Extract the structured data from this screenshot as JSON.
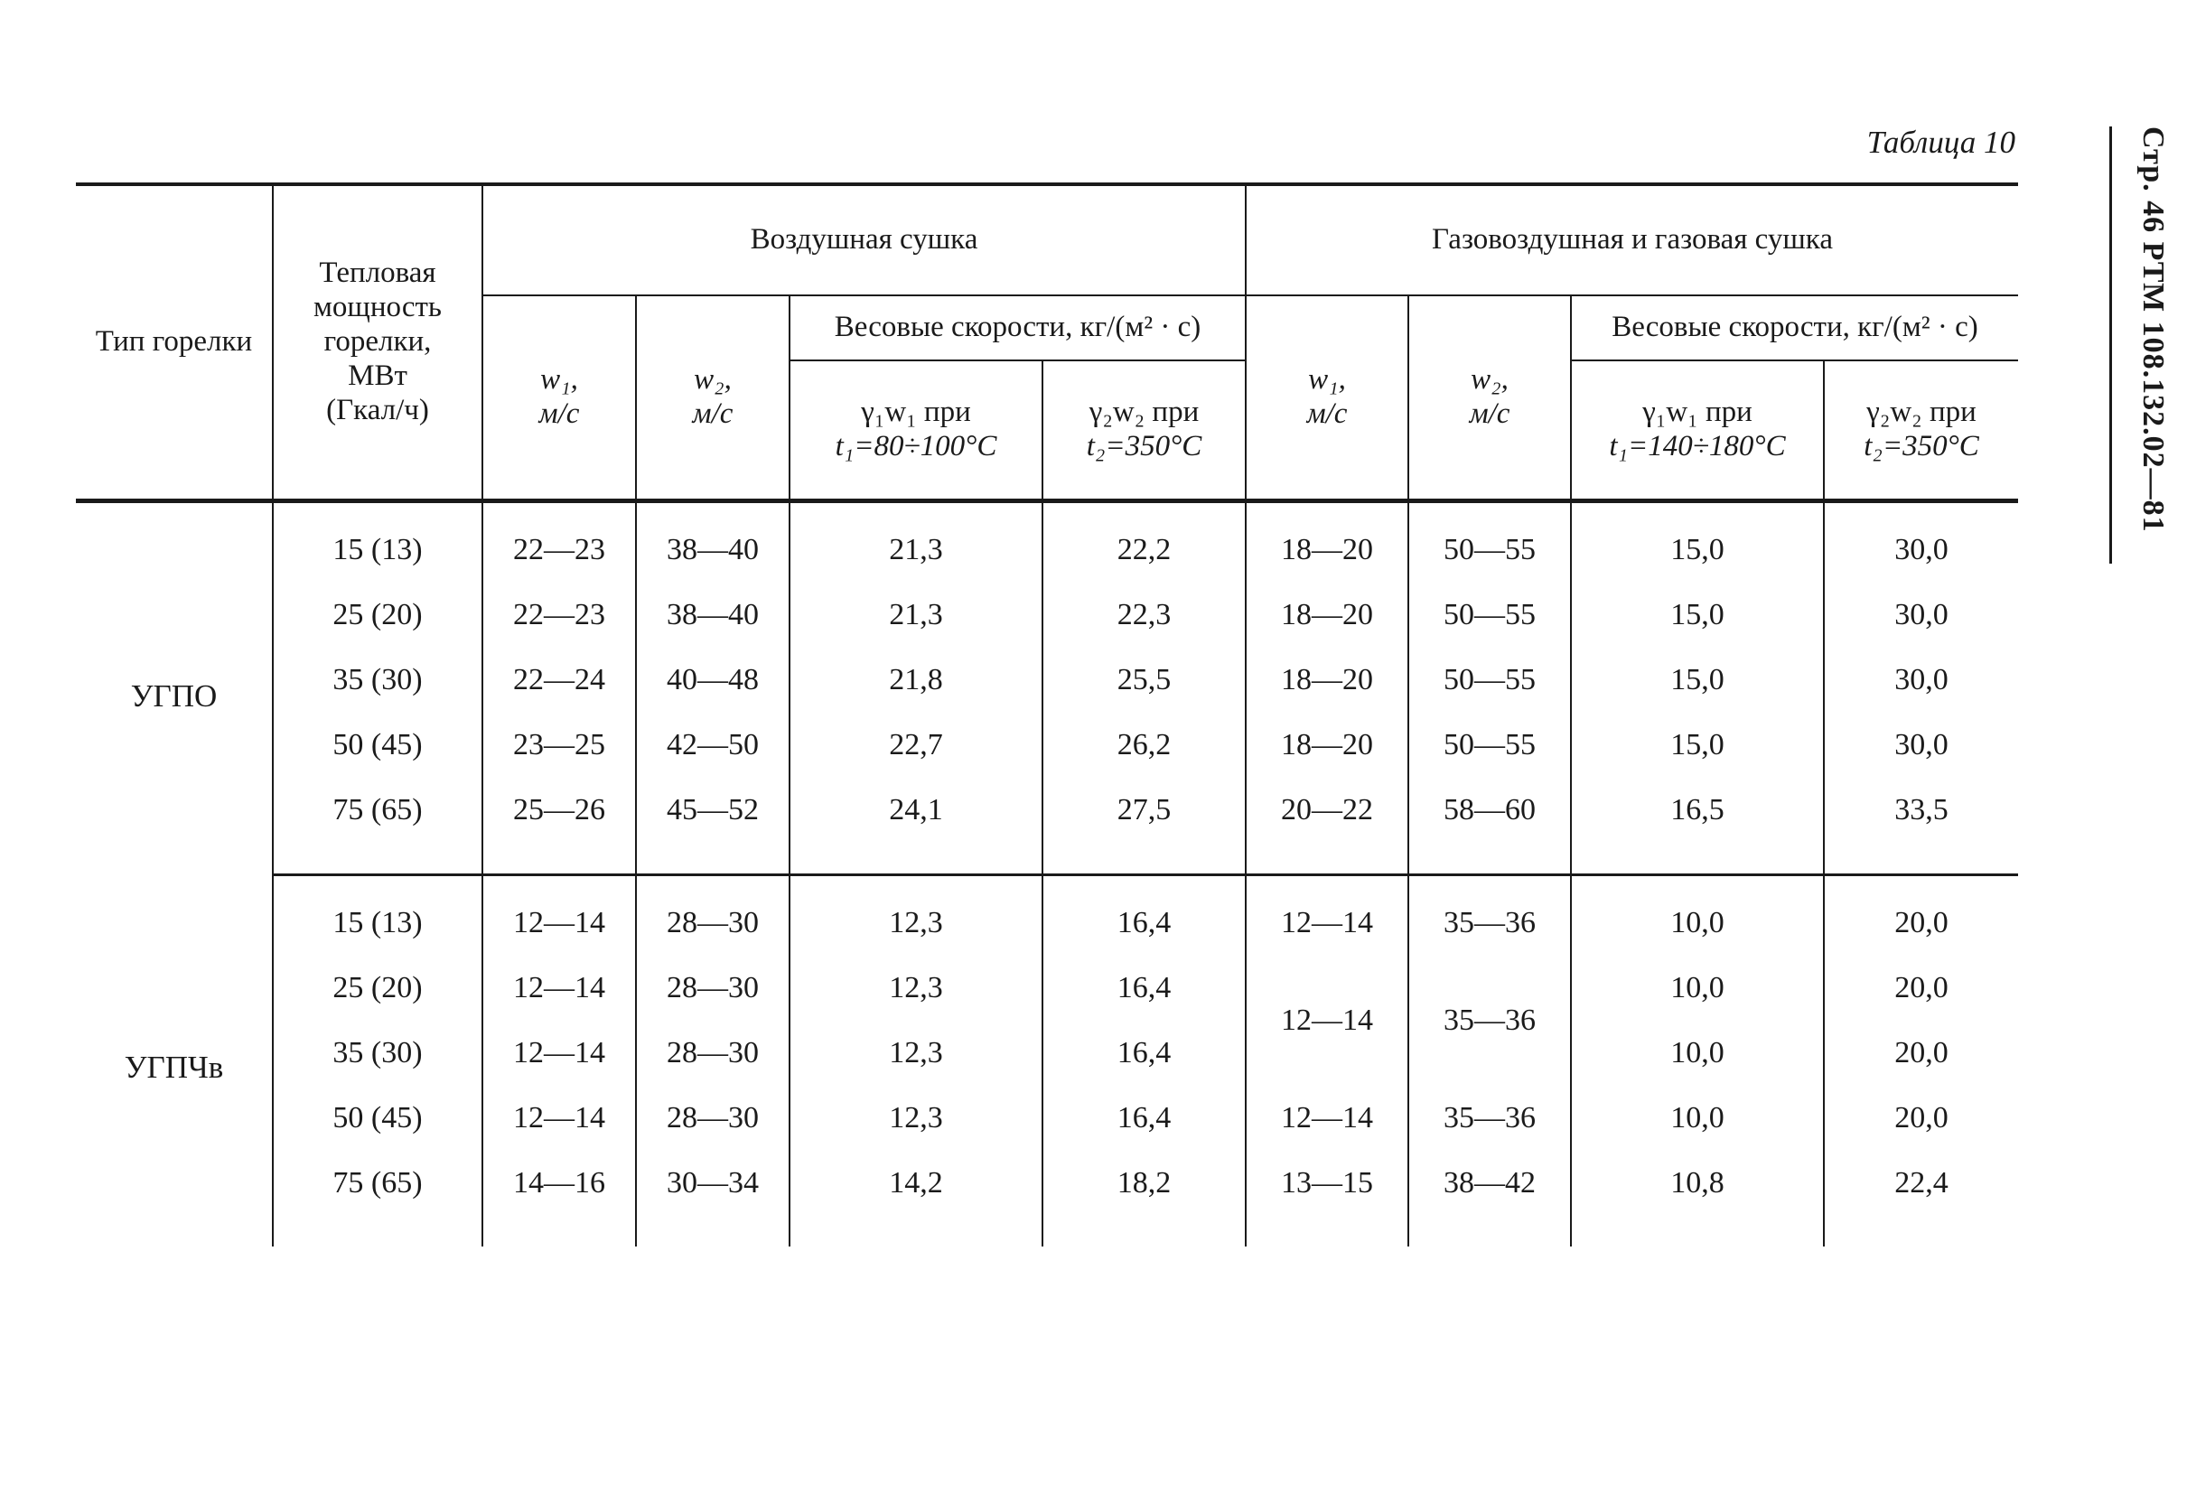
{
  "caption": "Таблица 10",
  "side_reference": "Стр. 46 РТМ 108.132.02—81",
  "headers": {
    "burner_type": "Тип горелки",
    "thermal_power_1": "Тепловая",
    "thermal_power_2": "мощность",
    "thermal_power_3": "горелки,",
    "thermal_power_4": "МВт",
    "thermal_power_5": "(Гкал/ч)",
    "air_drying": "Воздушная сушка",
    "gas_air_drying": "Газовоздушная и газовая сушка",
    "weight_speeds": "Весовые скорости, кг/(м² · с)",
    "unit": "м/с",
    "w1": "w₁,",
    "w2": "w₂,",
    "gw1_label": "γ₁w₁ при",
    "gw2_label": "γ₂w₂ при",
    "air_t1": "t₁=80÷100°C",
    "air_t2": "t₂=350°C",
    "gas_t1": "t₁=140÷180°C",
    "gas_t2": "t₂=350°C"
  },
  "groups": [
    {
      "type": "УГПО",
      "rows": [
        {
          "power": "15 (13)",
          "a_w1": "22—23",
          "a_w2": "38—40",
          "a_g1": "21,3",
          "a_g2": "22,2",
          "g_w1": "18—20",
          "g_w2": "50—55",
          "g_g1": "15,0",
          "g_g2": "30,0"
        },
        {
          "power": "25 (20)",
          "a_w1": "22—23",
          "a_w2": "38—40",
          "a_g1": "21,3",
          "a_g2": "22,3",
          "g_w1": "18—20",
          "g_w2": "50—55",
          "g_g1": "15,0",
          "g_g2": "30,0"
        },
        {
          "power": "35 (30)",
          "a_w1": "22—24",
          "a_w2": "40—48",
          "a_g1": "21,8",
          "a_g2": "25,5",
          "g_w1": "18—20",
          "g_w2": "50—55",
          "g_g1": "15,0",
          "g_g2": "30,0"
        },
        {
          "power": "50 (45)",
          "a_w1": "23—25",
          "a_w2": "42—50",
          "a_g1": "22,7",
          "a_g2": "26,2",
          "g_w1": "18—20",
          "g_w2": "50—55",
          "g_g1": "15,0",
          "g_g2": "30,0"
        },
        {
          "power": "75 (65)",
          "a_w1": "25—26",
          "a_w2": "45—52",
          "a_g1": "24,1",
          "a_g2": "27,5",
          "g_w1": "20—22",
          "g_w2": "58—60",
          "g_g1": "16,5",
          "g_g2": "33,5"
        }
      ]
    },
    {
      "type": "УГПЧв",
      "rows": [
        {
          "power": "15 (13)",
          "a_w1": "12—14",
          "a_w2": "28—30",
          "a_g1": "12,3",
          "a_g2": "16,4",
          "g_w1": "12—14",
          "g_w2": "35—36",
          "g_g1": "10,0",
          "g_g2": "20,0"
        },
        {
          "power": "25 (20)",
          "a_w1": "12—14",
          "a_w2": "28—30",
          "a_g1": "12,3",
          "a_g2": "16,4",
          "g_w1": "12—14",
          "g_w2": "35—36",
          "g_g1": "10,0",
          "g_g2": "20,0"
        },
        {
          "power": "35 (30)",
          "a_w1": "12—14",
          "a_w2": "28—30",
          "a_g1": "12,3",
          "a_g2": "16,4",
          "g_g1": "10,0",
          "g_g2": "20,0"
        },
        {
          "power": "50 (45)",
          "a_w1": "12—14",
          "a_w2": "28—30",
          "a_g1": "12,3",
          "a_g2": "16,4",
          "g_w1": "12—14",
          "g_w2": "35—36",
          "g_g1": "10,0",
          "g_g2": "20,0"
        },
        {
          "power": "75 (65)",
          "a_w1": "14—16",
          "a_w2": "30—34",
          "a_g1": "14,2",
          "a_g2": "18,2",
          "g_w1": "13—15",
          "g_w2": "38—42",
          "g_g1": "10,8",
          "g_g2": "22,4"
        }
      ]
    }
  ]
}
